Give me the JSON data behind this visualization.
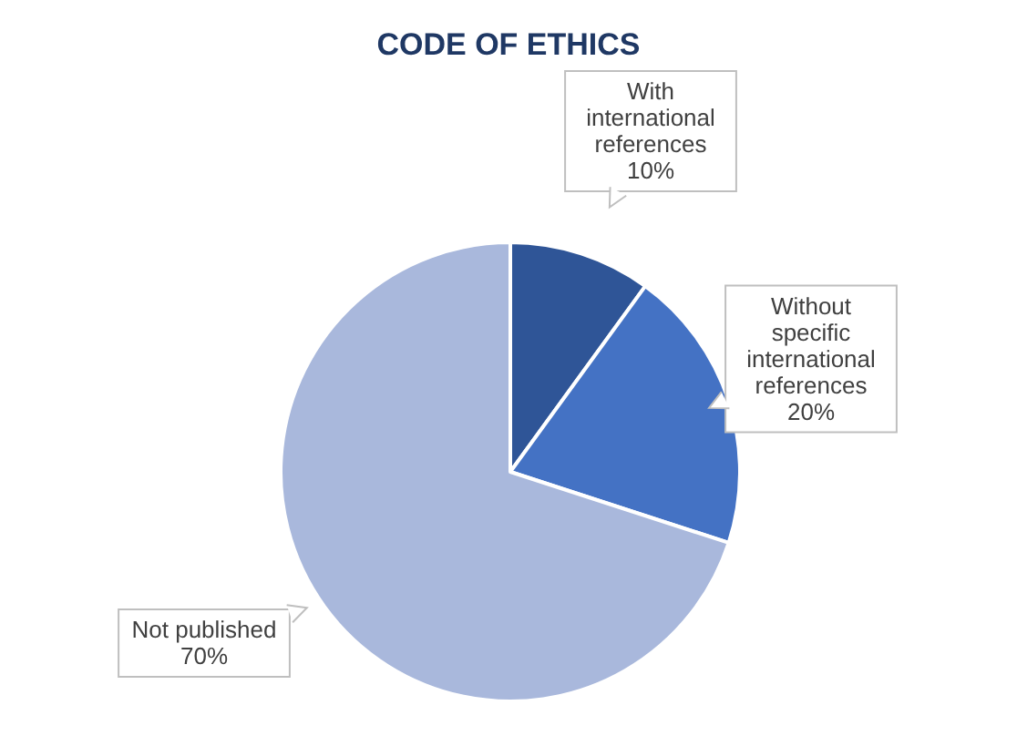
{
  "chart_data": {
    "type": "pie",
    "title": "CODE OF ETHICS",
    "categories": [
      "With international references",
      "Without specific international references",
      "Not published"
    ],
    "values": [
      10,
      20,
      70
    ],
    "colors": [
      "#2f5597",
      "#4472c4",
      "#a9b8dc"
    ],
    "value_labels": [
      "10%",
      "20%",
      "70%"
    ],
    "legend": false
  }
}
